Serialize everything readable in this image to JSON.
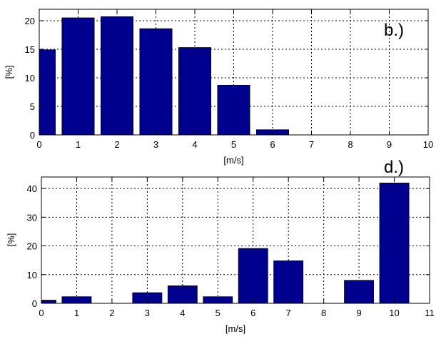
{
  "chart_data": [
    {
      "type": "bar",
      "panel_label": "b.)",
      "xlabel": "[m/s]",
      "ylabel": "[%]",
      "xlim": [
        0,
        10
      ],
      "ylim": [
        0,
        22
      ],
      "xticks": [
        0,
        1,
        2,
        3,
        4,
        5,
        6,
        7,
        8,
        9,
        10
      ],
      "yticks": [
        0,
        5,
        10,
        15,
        20
      ],
      "grid": true,
      "bar_color": "#00008f",
      "bar_width": 0.83,
      "x": [
        0,
        1,
        2,
        3,
        4,
        5,
        6
      ],
      "values": [
        14.9,
        20.5,
        20.7,
        18.6,
        15.3,
        8.7,
        0.9
      ]
    },
    {
      "type": "bar",
      "panel_label": "d.)",
      "xlabel": "[m/s]",
      "ylabel": "[%]",
      "xlim": [
        0,
        11
      ],
      "ylim": [
        0,
        44
      ],
      "xticks": [
        0,
        1,
        2,
        3,
        4,
        5,
        6,
        7,
        8,
        9,
        10,
        11
      ],
      "yticks": [
        0,
        10,
        20,
        30,
        40
      ],
      "grid": true,
      "bar_color": "#00008f",
      "bar_width": 0.83,
      "x": [
        0,
        1,
        3,
        4,
        5,
        6,
        7,
        9,
        10
      ],
      "values": [
        1.1,
        2.3,
        3.7,
        6.1,
        2.3,
        19.1,
        14.8,
        8.0,
        41.9
      ]
    }
  ]
}
